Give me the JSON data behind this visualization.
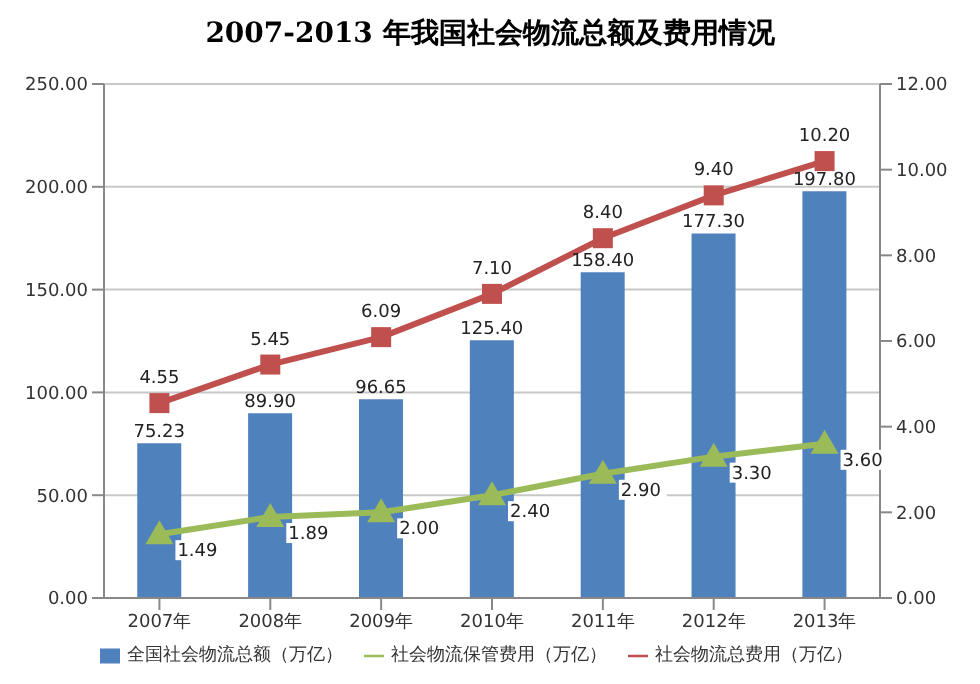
{
  "chart_data": {
    "type": "bar",
    "title": "2007-2013 年我国社会物流总额及费用情况",
    "categories": [
      "2007年",
      "2008年",
      "2009年",
      "2010年",
      "2011年",
      "2012年",
      "2013年"
    ],
    "series": [
      {
        "name": "全国社会物流总额（万亿）",
        "color": "#4f81bd",
        "values": [
          75.23,
          89.9,
          96.65,
          125.4,
          158.4,
          177.3,
          197.8
        ],
        "value_labels": [
          "75.23",
          "89.90",
          "96.65",
          "125.40",
          "158.40",
          "177.30",
          "197.80"
        ]
      },
      {
        "name": "社会物流总费用（万亿）",
        "type": "line",
        "axis": "y2",
        "marker": "square",
        "color": "#c0504d",
        "values": [
          4.55,
          5.45,
          6.09,
          7.1,
          8.4,
          9.4,
          10.2
        ],
        "value_labels": [
          "4.55",
          "5.45",
          "6.09",
          "7.10",
          "8.40",
          "9.40",
          "10.20"
        ]
      },
      {
        "name": "社会物流保管费用（万亿）",
        "type": "line",
        "axis": "y2",
        "marker": "triangle",
        "color": "#9bbb59",
        "values": [
          1.49,
          1.89,
          2.0,
          2.4,
          2.9,
          3.3,
          3.6
        ],
        "value_labels": [
          "1.49",
          "1.89",
          "2.00",
          "2.40",
          "2.90",
          "3.30",
          "3.60"
        ]
      }
    ],
    "ylim": [
      0,
      250
    ],
    "yticks": [
      {
        "value": 0,
        "label": "0.00"
      },
      {
        "value": 50,
        "label": "50.00"
      },
      {
        "value": 100,
        "label": "100.00"
      },
      {
        "value": 150,
        "label": "150.00"
      },
      {
        "value": 200,
        "label": "200.00"
      },
      {
        "value": 250,
        "label": "250.00"
      }
    ],
    "y2lim": [
      0,
      12
    ],
    "y2ticks": [
      {
        "value": 0,
        "label": "0.00"
      },
      {
        "value": 2,
        "label": "2.00"
      },
      {
        "value": 4,
        "label": "4.00"
      },
      {
        "value": 6,
        "label": "6.00"
      },
      {
        "value": 8,
        "label": "8.00"
      },
      {
        "value": 10,
        "label": "10.00"
      },
      {
        "value": 12,
        "label": "12.00"
      }
    ],
    "grid": "y",
    "legend": "bottom"
  }
}
